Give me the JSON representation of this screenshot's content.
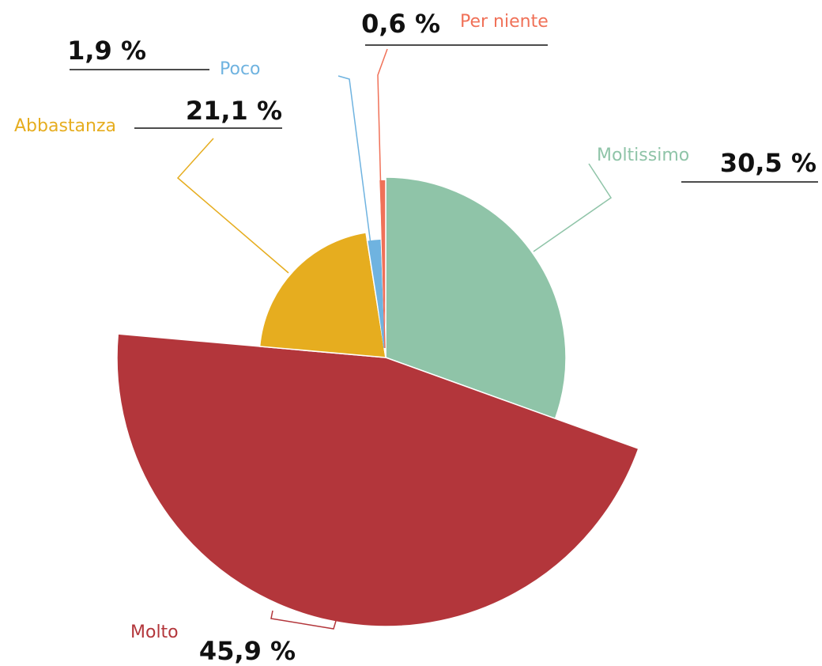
{
  "chart_data": {
    "type": "pie",
    "categories": [
      "Moltissimo",
      "Molto",
      "Abbastanza",
      "Poco",
      "Per niente"
    ],
    "values": [
      30.5,
      45.9,
      21.1,
      1.9,
      0.6
    ],
    "value_labels": [
      "30,5 %",
      "45,9 %",
      "21,1 %",
      "1,9 %",
      "0,6 %"
    ],
    "colors": [
      "#8fc4a8",
      "#b3363b",
      "#e6ad1f",
      "#6fb3e0",
      "#f07158"
    ]
  }
}
